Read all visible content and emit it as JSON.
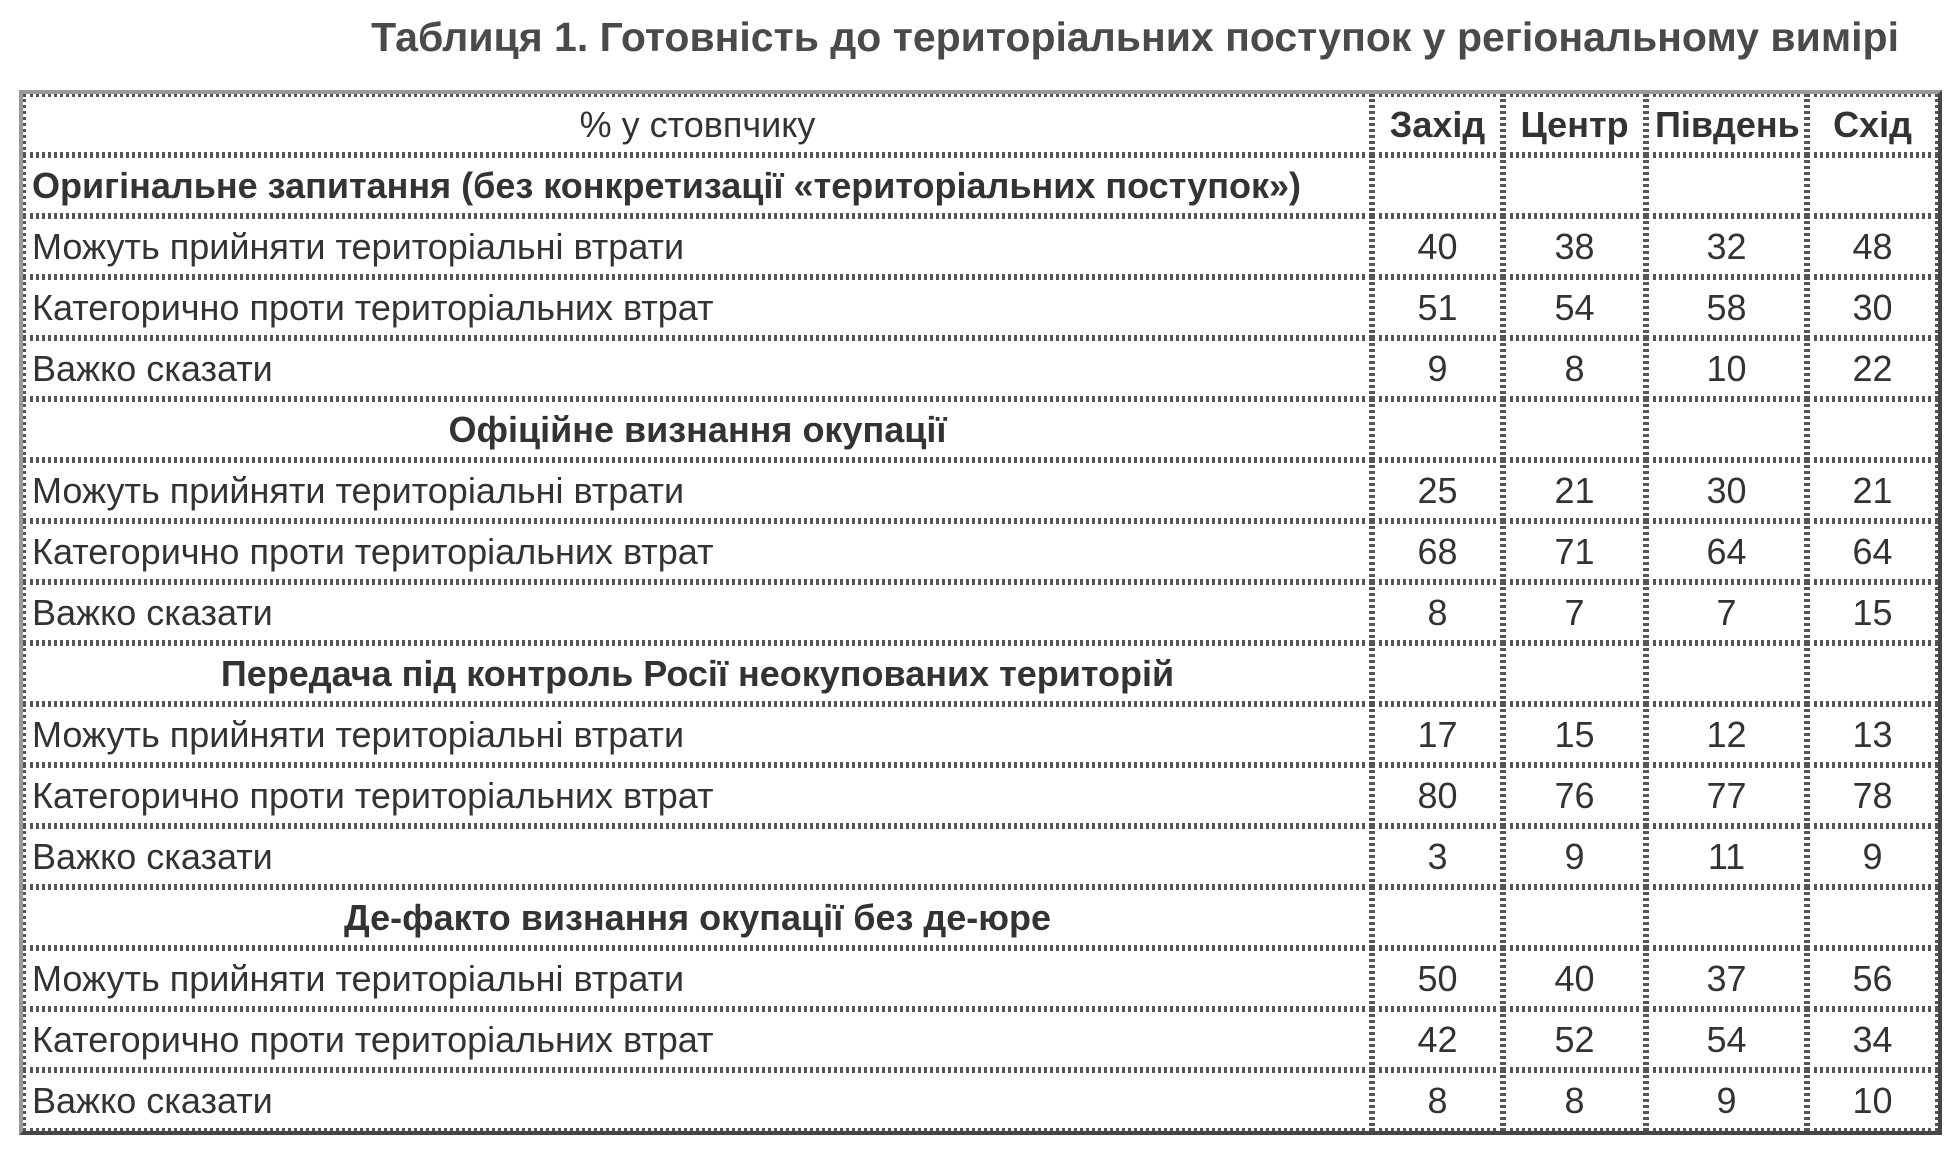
{
  "title": "Таблиця 1. Готовність до територіальних поступок у регіональному вимірі",
  "header": {
    "label": "% у стовпчику",
    "regions": [
      "Захід",
      "Центр",
      "Південь",
      "Схід"
    ]
  },
  "sections": [
    {
      "title": "Оригінальне запитання (без конкретизації «територіальних поступок»)",
      "rows": [
        {
          "label": "Можуть прийняти територіальні втрати",
          "values": [
            "40",
            "38",
            "32",
            "48"
          ]
        },
        {
          "label": "Категорично проти територіальних втрат",
          "values": [
            "51",
            "54",
            "58",
            "30"
          ]
        },
        {
          "label": "Важко сказати",
          "values": [
            "9",
            "8",
            "10",
            "22"
          ]
        }
      ]
    },
    {
      "title": "Офіційне визнання окупації",
      "rows": [
        {
          "label": "Можуть прийняти територіальні втрати",
          "values": [
            "25",
            "21",
            "30",
            "21"
          ]
        },
        {
          "label": "Категорично проти територіальних втрат",
          "values": [
            "68",
            "71",
            "64",
            "64"
          ]
        },
        {
          "label": "Важко сказати",
          "values": [
            "8",
            "7",
            "7",
            "15"
          ]
        }
      ]
    },
    {
      "title": "Передача під контроль Росії неокупованих територій",
      "rows": [
        {
          "label": "Можуть прийняти територіальні втрати",
          "values": [
            "17",
            "15",
            "12",
            "13"
          ]
        },
        {
          "label": "Категорично проти територіальних втрат",
          "values": [
            "80",
            "76",
            "77",
            "78"
          ]
        },
        {
          "label": "Важко сказати",
          "values": [
            "3",
            "9",
            "11",
            "9"
          ]
        }
      ]
    },
    {
      "title": "Де-факто визнання окупації без де-юре",
      "rows": [
        {
          "label": "Можуть прийняти територіальні втрати",
          "values": [
            "50",
            "40",
            "37",
            "56"
          ]
        },
        {
          "label": "Категорично проти територіальних втрат",
          "values": [
            "42",
            "52",
            "54",
            "34"
          ]
        },
        {
          "label": "Важко сказати",
          "values": [
            "8",
            "8",
            "9",
            "10"
          ]
        }
      ]
    }
  ]
}
